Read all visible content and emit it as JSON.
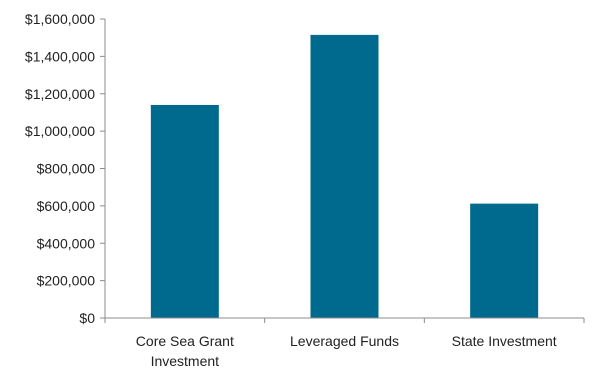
{
  "chart_data": {
    "type": "bar",
    "categories": [
      [
        "Core Sea Grant",
        "Investment"
      ],
      [
        "Leveraged Funds"
      ],
      [
        "State Investment"
      ]
    ],
    "values": [
      1140000,
      1515000,
      612000
    ],
    "y_tick_labels": [
      "$0",
      "$200,000",
      "$400,000",
      "$600,000",
      "$800,000",
      "$1,000,000",
      "$1,200,000",
      "$1,400,000",
      "$1,600,000"
    ],
    "y_tick_values": [
      0,
      200000,
      400000,
      600000,
      800000,
      1000000,
      1200000,
      1400000,
      1600000
    ],
    "ylim": [
      0,
      1600000
    ],
    "grid": false,
    "legend": "none",
    "title": "",
    "xlabel": "",
    "ylabel": "",
    "colors": {
      "bar": "#006a8e",
      "axis": "#8c8c8c"
    }
  }
}
